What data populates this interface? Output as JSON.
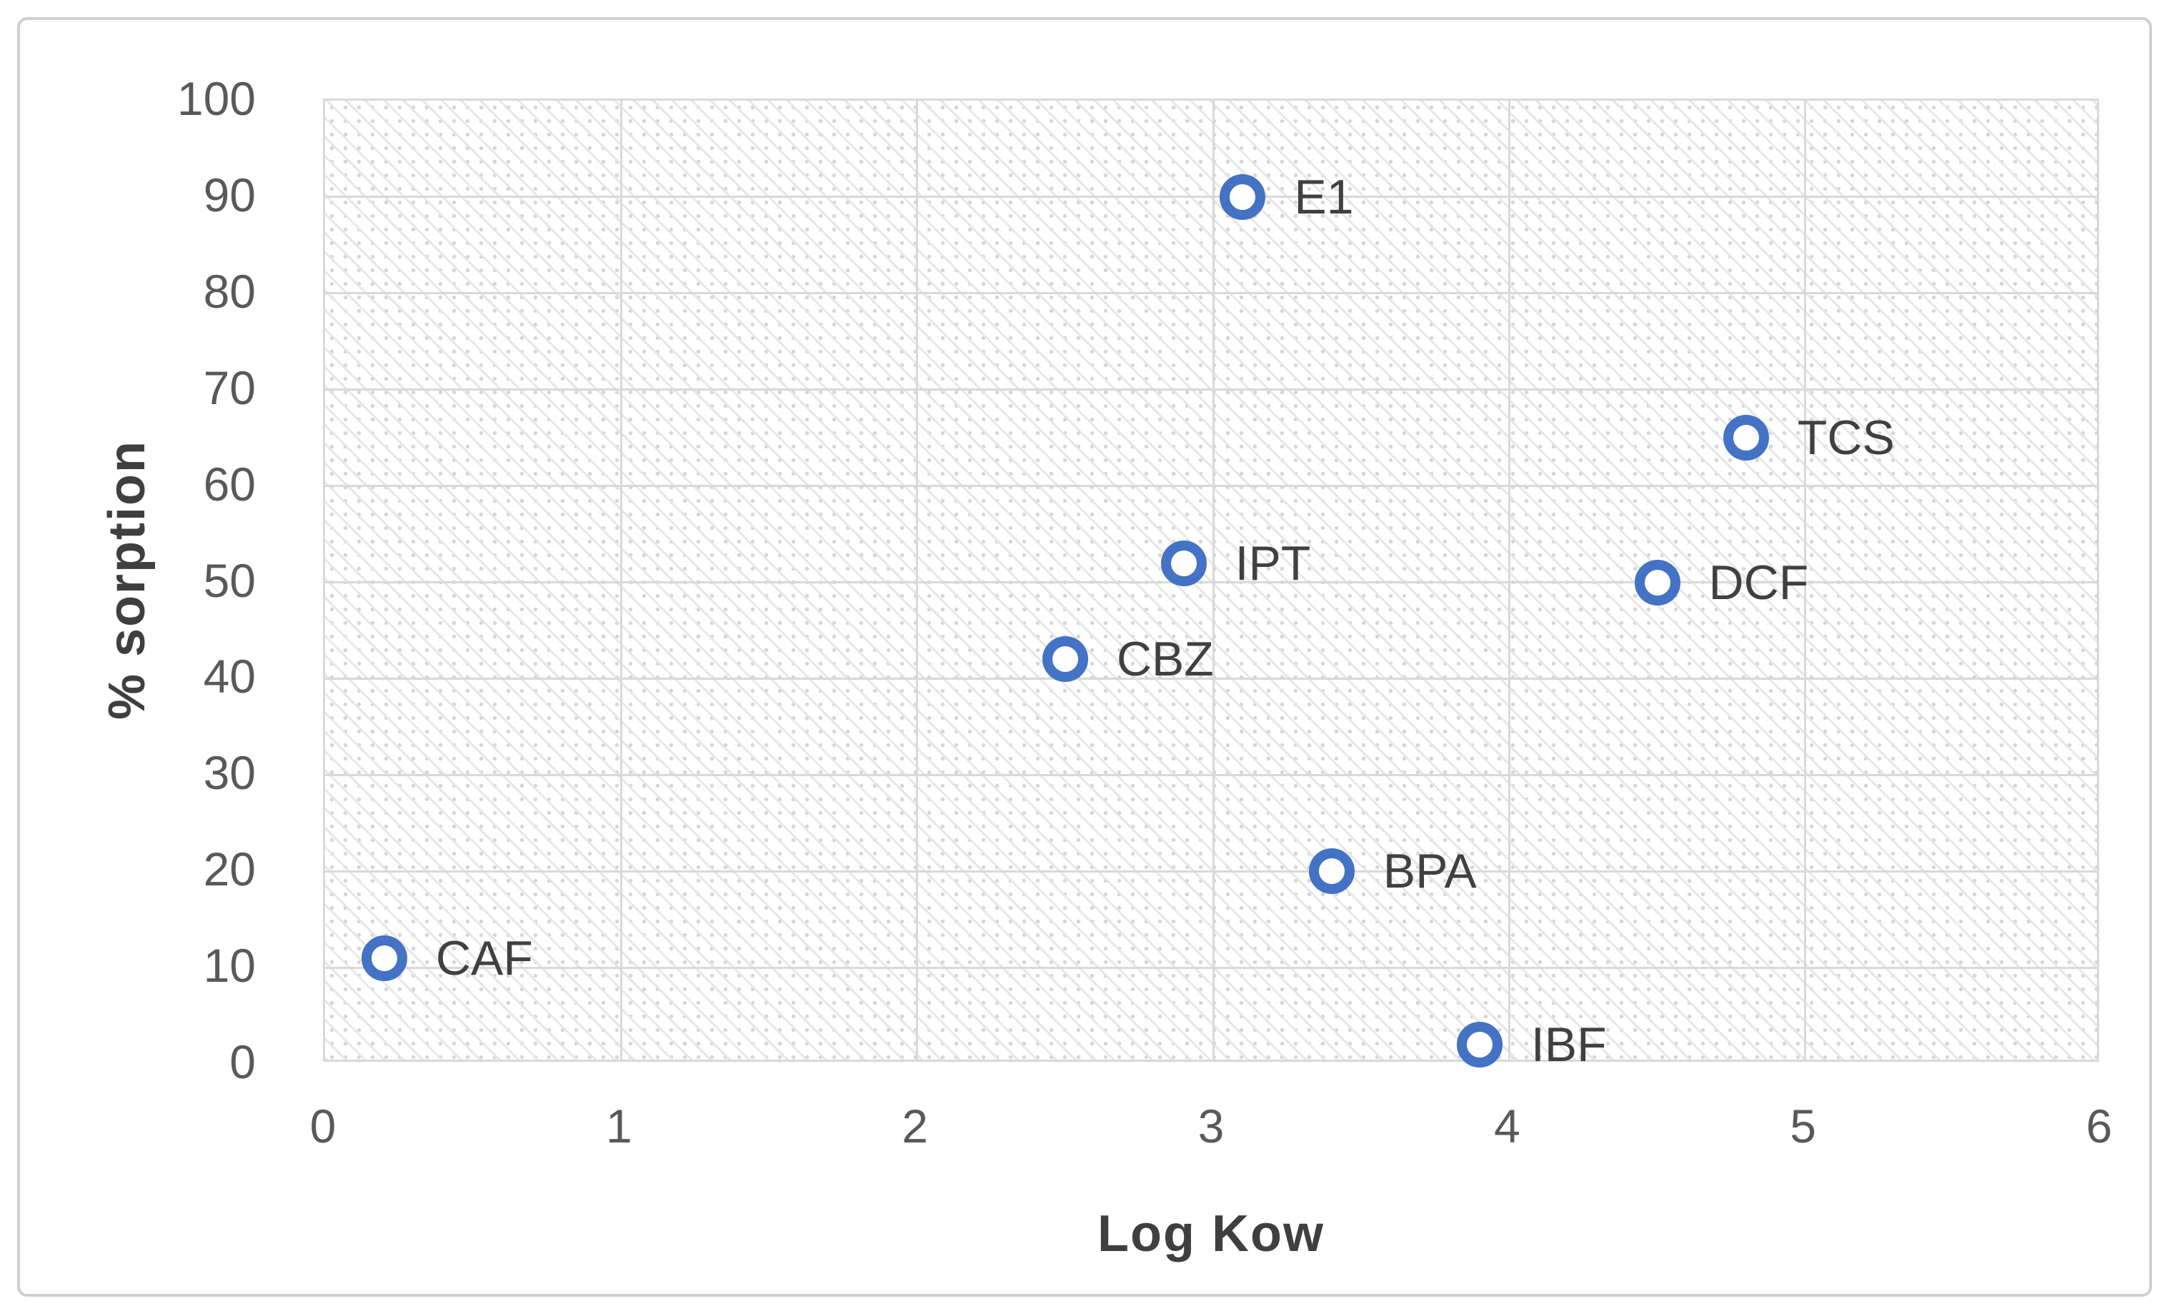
{
  "chart_data": {
    "type": "scatter",
    "title": "",
    "xlabel": "Log Kow",
    "ylabel": "% sorption",
    "xlim": [
      0,
      6
    ],
    "ylim": [
      0,
      100
    ],
    "x_ticks": [
      0,
      1,
      2,
      3,
      4,
      5,
      6
    ],
    "y_ticks": [
      0,
      10,
      20,
      30,
      40,
      50,
      60,
      70,
      80,
      90,
      100
    ],
    "grid": true,
    "legend": false,
    "plot_background": "diagonal-hatch",
    "marker": {
      "shape": "open-circle",
      "color": "#4472C4",
      "fill": "#FFFFFF"
    },
    "points": [
      {
        "label": "CAF",
        "x": 0.2,
        "y": 11
      },
      {
        "label": "CBZ",
        "x": 2.5,
        "y": 42
      },
      {
        "label": "IPT",
        "x": 2.9,
        "y": 52
      },
      {
        "label": "E1",
        "x": 3.1,
        "y": 90
      },
      {
        "label": "BPA",
        "x": 3.4,
        "y": 20
      },
      {
        "label": "IBF",
        "x": 3.9,
        "y": 2
      },
      {
        "label": "DCF",
        "x": 4.5,
        "y": 50
      },
      {
        "label": "TCS",
        "x": 4.8,
        "y": 65
      }
    ],
    "colors": {
      "marker": "#4472C4",
      "gridline": "#D9D9D9",
      "tick_label": "#595959",
      "axis_title": "#3F3F3F",
      "data_label": "#404040",
      "frame_border": "#CFCFCF"
    }
  }
}
